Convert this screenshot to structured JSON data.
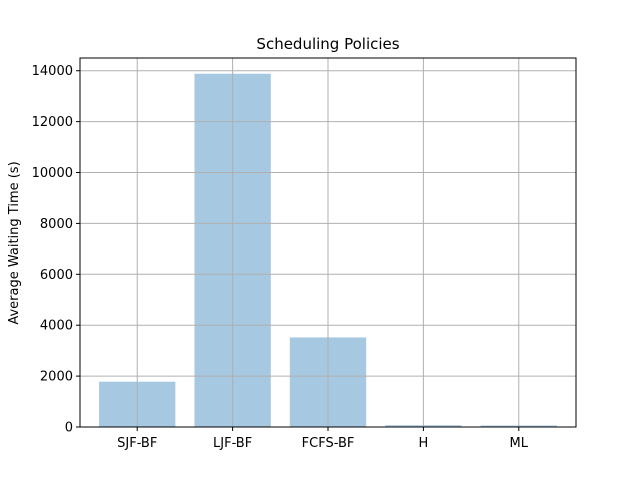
{
  "chart_data": {
    "type": "bar",
    "title": "Scheduling Policies",
    "xlabel": "",
    "ylabel": "Average Waiting Time (s)",
    "categories": [
      "SJF-BF",
      "LJF-BF",
      "FCFS-BF",
      "H",
      "ML"
    ],
    "values": [
      1780,
      13880,
      3520,
      70,
      60
    ],
    "ylim": [
      0,
      14500
    ],
    "yticks": [
      0,
      2000,
      4000,
      6000,
      8000,
      10000,
      12000,
      14000
    ],
    "ytick_labels": [
      "0",
      "2000",
      "4000",
      "6000",
      "8000",
      "10000",
      "12000",
      "14000"
    ],
    "grid": true,
    "bar_color": "#a6c8e0",
    "grid_color": "#b0b0b0"
  }
}
